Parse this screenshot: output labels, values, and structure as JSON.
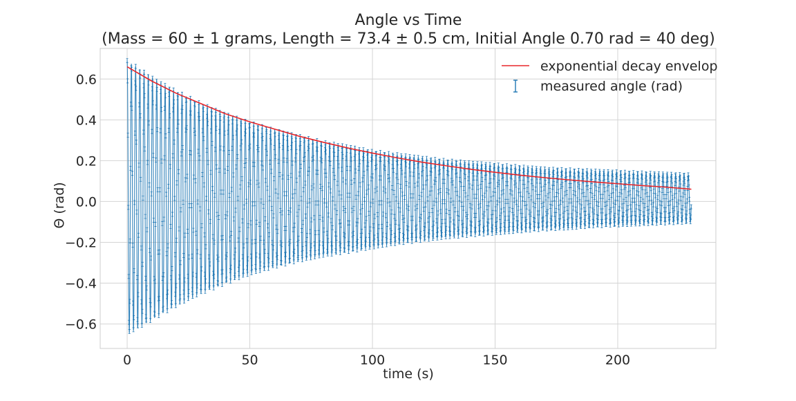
{
  "chart_data": {
    "type": "line",
    "title": "Angle vs Time",
    "subtitle": "(Mass = 60 ± 1 grams, Length = 73.4 ± 0.5 cm, Initial Angle 0.70 rad = 40 deg)",
    "xlabel": "time (s)",
    "ylabel": "Θ (rad)",
    "xlim": [
      -11,
      240
    ],
    "ylim": [
      -0.72,
      0.75
    ],
    "xticks": [
      0,
      50,
      100,
      150,
      200
    ],
    "yticks": [
      -0.6,
      -0.4,
      -0.2,
      0.0,
      0.2,
      0.4,
      0.6
    ],
    "xtick_labels": [
      "0",
      "50",
      "100",
      "150",
      "200"
    ],
    "ytick_labels": [
      "−0.6",
      "−0.4",
      "−0.2",
      "0.0",
      "0.2",
      "0.4",
      "0.6"
    ],
    "grid": true,
    "legend_position": "top-right",
    "series": [
      {
        "name": "exponential decay envelop",
        "kind": "line",
        "color": "#e8262a",
        "x": [
          0,
          10,
          20,
          30,
          40,
          50,
          60,
          70,
          80,
          90,
          100,
          110,
          120,
          130,
          140,
          150,
          160,
          170,
          180,
          190,
          200,
          210,
          220,
          230
        ],
        "y": [
          0.66,
          0.59,
          0.53,
          0.48,
          0.43,
          0.39,
          0.355,
          0.32,
          0.29,
          0.262,
          0.237,
          0.214,
          0.193,
          0.175,
          0.158,
          0.143,
          0.129,
          0.117,
          0.106,
          0.096,
          0.087,
          0.078,
          0.07,
          0.06
        ]
      },
      {
        "name": "measured angle (rad)",
        "kind": "errorbar",
        "color": "#1f77b4",
        "x": [
          0,
          10,
          20,
          30,
          40,
          50,
          60,
          70,
          80,
          90,
          100,
          110,
          120,
          130,
          140,
          150,
          160,
          170,
          180,
          190,
          200,
          210,
          220,
          230
        ],
        "upper_envelope": [
          0.69,
          0.61,
          0.54,
          0.48,
          0.43,
          0.385,
          0.35,
          0.32,
          0.29,
          0.27,
          0.245,
          0.23,
          0.215,
          0.2,
          0.19,
          0.18,
          0.17,
          0.16,
          0.155,
          0.15,
          0.145,
          0.14,
          0.135,
          0.13
        ],
        "lower_envelope": [
          -0.65,
          -0.58,
          -0.51,
          -0.45,
          -0.4,
          -0.355,
          -0.32,
          -0.29,
          -0.265,
          -0.245,
          -0.225,
          -0.205,
          -0.19,
          -0.175,
          -0.165,
          -0.155,
          -0.145,
          -0.135,
          -0.13,
          -0.12,
          -0.115,
          -0.11,
          -0.105,
          -0.1
        ],
        "period": 1.72,
        "error": 0.01
      }
    ]
  }
}
